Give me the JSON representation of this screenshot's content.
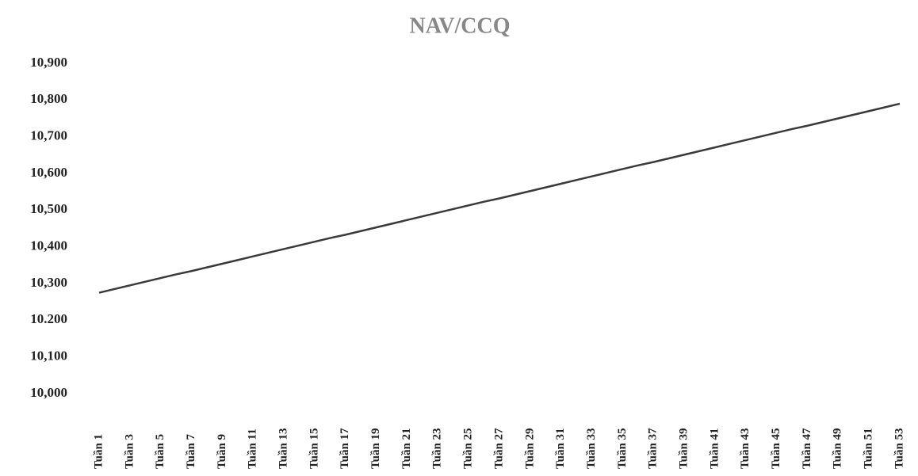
{
  "chart_data": {
    "type": "line",
    "title": "NAV/CCQ",
    "categories": [
      "Tuần 1",
      null,
      "Tuần 3",
      null,
      "Tuần 5",
      null,
      "Tuần 7",
      null,
      "Tuần 9",
      null,
      "Tuần 11",
      null,
      "Tuần 13",
      null,
      "Tuần 15",
      null,
      "Tuần 17",
      null,
      "Tuần 19",
      null,
      "Tuần 21",
      null,
      "Tuần 23",
      null,
      "Tuần 25",
      null,
      "Tuần 27",
      null,
      "Tuần 29",
      null,
      "Tuần 31",
      null,
      "Tuần 33",
      null,
      "Tuần 35",
      null,
      "Tuần 37",
      null,
      "Tuần 39",
      null,
      "Tuần 41",
      null,
      "Tuần 43",
      null,
      "Tuần 45",
      null,
      "Tuần 47",
      null,
      "Tuần 49",
      null,
      "Tuần 51",
      null,
      "Tuần 53"
    ],
    "values": [
      10275,
      10285,
      10295,
      10305,
      10315,
      10325,
      10334,
      10344,
      10354,
      10364,
      10374,
      10384,
      10394,
      10404,
      10414,
      10424,
      10433,
      10443,
      10453,
      10463,
      10473,
      10483,
      10493,
      10503,
      10513,
      10523,
      10532,
      10542,
      10552,
      10562,
      10572,
      10582,
      10592,
      10602,
      10612,
      10622,
      10631,
      10641,
      10651,
      10661,
      10671,
      10681,
      10691,
      10701,
      10711,
      10721,
      10730,
      10740,
      10750,
      10760,
      10770,
      10780,
      10790
    ],
    "color": "#3a3a3a",
    "ylim": [
      10000,
      10900
    ],
    "yticks": [
      {
        "value": 10000,
        "label": "10,000"
      },
      {
        "value": 10100,
        "label": "10,100"
      },
      {
        "value": 10200,
        "label": "10.200"
      },
      {
        "value": 10300,
        "label": "10,300"
      },
      {
        "value": 10400,
        "label": "10,400"
      },
      {
        "value": 10500,
        "label": "10,500"
      },
      {
        "value": 10600,
        "label": "10,600"
      },
      {
        "value": 10700,
        "label": "10,700"
      },
      {
        "value": 10800,
        "label": "10,800"
      },
      {
        "value": 10900,
        "label": "10,900"
      }
    ],
    "grid": false
  }
}
